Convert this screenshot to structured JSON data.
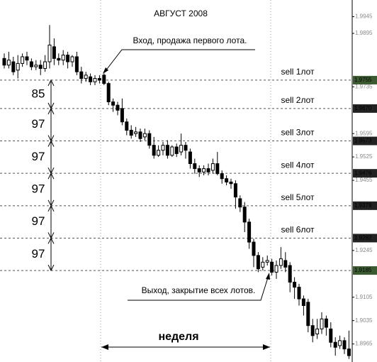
{
  "chart_data": {
    "type": "candlestick",
    "title": "АВГУСТ 2008",
    "entry_note": "Вход, продажа первого лота.",
    "exit_note": "Выход, закрытие всех лотов.",
    "period_note": "неделя",
    "ylim": [
      1.8911,
      1.9995
    ],
    "yticks": [
      1.9945,
      1.9895,
      1.9735,
      1.9595,
      1.9525,
      1.9455,
      1.9245,
      1.9105,
      1.9035,
      1.8965
    ],
    "levels": [
      {
        "price": 1.9755,
        "label": "sell 1лот",
        "color": "#3c5a32"
      },
      {
        "price": {
          "value": 1.967,
          "label": "1.9670"
        },
        "label": "sell 2лот",
        "color": "#222222"
      },
      {
        "price": 1.9573,
        "label": "sell 3лот",
        "color": "#222222"
      },
      {
        "price": 1.9476,
        "label": "sell 4лот",
        "color": "#222222"
      },
      {
        "price": 1.9379,
        "label": "sell 5лот",
        "color": "#222222"
      },
      {
        "price": 1.9282,
        "label": "sell 6лот",
        "color": "#222222"
      },
      {
        "price": 1.9185,
        "label": null,
        "color": "#3c5a32"
      }
    ],
    "distances": [
      85,
      97,
      97,
      97,
      97,
      97
    ],
    "open": [
      1.982,
      1.98,
      1.981,
      1.9785,
      1.9805,
      1.9825,
      1.981,
      1.9795,
      1.98,
      1.979,
      1.981,
      1.9855,
      1.982,
      1.9815,
      1.983,
      1.981,
      1.9825,
      1.978,
      1.976,
      1.9765,
      1.975,
      1.976,
      1.977,
      1.9745,
      1.969,
      1.968,
      1.967,
      1.963,
      1.9605,
      1.9595,
      1.96,
      1.9585,
      1.9595,
      1.956,
      1.953,
      1.9545,
      1.956,
      1.953,
      1.9555,
      1.954,
      1.956,
      1.954,
      1.9505,
      1.949,
      1.948,
      1.949,
      1.9485,
      1.9505,
      1.9475,
      1.946,
      1.945,
      1.9445,
      1.94,
      1.9375,
      1.933,
      1.927,
      1.923,
      1.9195,
      1.921,
      1.921,
      1.918,
      1.92,
      1.9215,
      1.92,
      1.915,
      1.9135,
      1.91,
      1.909,
      1.902,
      1.8995,
      1.901,
      1.904,
      1.901,
      1.897,
      1.896,
      1.8975,
      1.895
    ],
    "high": [
      1.9835,
      1.984,
      1.9825,
      1.983,
      1.9835,
      1.984,
      1.982,
      1.9815,
      1.9815,
      1.983,
      1.992,
      1.988,
      1.9835,
      1.9845,
      1.984,
      1.983,
      1.984,
      1.9795,
      1.978,
      1.9775,
      1.977,
      1.977,
      1.9775,
      1.975,
      1.97,
      1.969,
      1.97,
      1.964,
      1.962,
      1.9615,
      1.961,
      1.961,
      1.9605,
      1.9585,
      1.956,
      1.957,
      1.9575,
      1.956,
      1.9565,
      1.9595,
      1.957,
      1.955,
      1.952,
      1.95,
      1.95,
      1.9505,
      1.952,
      1.954,
      1.9485,
      1.947,
      1.946,
      1.9455,
      1.941,
      1.939,
      1.934,
      1.928,
      1.924,
      1.9225,
      1.923,
      1.922,
      1.9215,
      1.9255,
      1.924,
      1.921,
      1.9165,
      1.9145,
      1.911,
      1.91,
      1.904,
      1.904,
      1.906,
      1.905,
      1.903,
      1.8985,
      1.899,
      1.8985,
      1.9005
    ],
    "low": [
      1.979,
      1.979,
      1.977,
      1.976,
      1.9795,
      1.98,
      1.9785,
      1.9785,
      1.977,
      1.978,
      1.979,
      1.98,
      1.98,
      1.98,
      1.979,
      1.9795,
      1.977,
      1.9745,
      1.975,
      1.974,
      1.974,
      1.9745,
      1.974,
      1.968,
      1.966,
      1.965,
      1.962,
      1.959,
      1.958,
      1.9585,
      1.957,
      1.9575,
      1.955,
      1.952,
      1.9525,
      1.953,
      1.952,
      1.9525,
      1.9525,
      1.953,
      1.952,
      1.949,
      1.9475,
      1.9465,
      1.947,
      1.947,
      1.9475,
      1.947,
      1.9445,
      1.944,
      1.943,
      1.937,
      1.936,
      1.93,
      1.925,
      1.9195,
      1.918,
      1.9185,
      1.92,
      1.917,
      1.916,
      1.919,
      1.918,
      1.912,
      1.91,
      1.908,
      1.905,
      1.9,
      1.897,
      1.898,
      1.8995,
      1.899,
      1.8955,
      1.893,
      1.895,
      1.8935,
      1.892
    ],
    "close": [
      1.98,
      1.9815,
      1.978,
      1.9805,
      1.9825,
      1.9815,
      1.9795,
      1.98,
      1.979,
      1.981,
      1.986,
      1.982,
      1.9815,
      1.983,
      1.981,
      1.9825,
      1.978,
      1.976,
      1.977,
      1.975,
      1.976,
      1.9755,
      1.9745,
      1.969,
      1.968,
      1.9665,
      1.963,
      1.9605,
      1.959,
      1.96,
      1.958,
      1.9595,
      1.956,
      1.953,
      1.9545,
      1.956,
      1.953,
      1.9555,
      1.9535,
      1.956,
      1.9545,
      1.9505,
      1.949,
      1.948,
      1.949,
      1.948,
      1.9505,
      1.9475,
      1.946,
      1.945,
      1.9445,
      1.9405,
      1.9375,
      1.933,
      1.927,
      1.923,
      1.919,
      1.921,
      1.9215,
      1.918,
      1.92,
      1.922,
      1.9195,
      1.915,
      1.9135,
      1.91,
      1.908,
      1.902,
      1.899,
      1.901,
      1.904,
      1.9015,
      1.897,
      1.8955,
      1.8975,
      1.895,
      1.893
    ]
  }
}
